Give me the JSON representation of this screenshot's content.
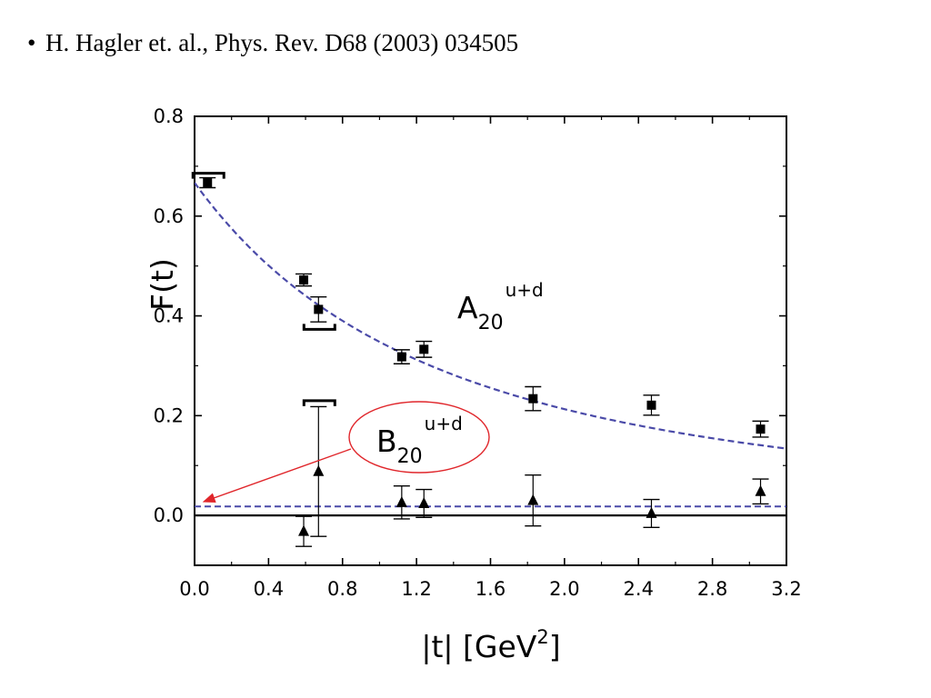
{
  "slide": {
    "bullet": "•",
    "citation": "H. Hagler et. al., Phys. Rev. D68 (2003) 034505"
  },
  "chart_data": {
    "type": "scatter",
    "title": "",
    "xlabel": "|t| [GeV",
    "xlabel_sup": "2",
    "xlabel_close": "]",
    "ylabel": "F(t)",
    "xlim": [
      0.0,
      3.2
    ],
    "ylim": [
      -0.1,
      0.8
    ],
    "x_ticks": [
      "0.0",
      "0.4",
      "0.8",
      "1.2",
      "1.6",
      "2.0",
      "2.4",
      "2.8",
      "3.2"
    ],
    "y_ticks": [
      "0.0",
      "0.2",
      "0.4",
      "0.6",
      "0.8"
    ],
    "grid": false,
    "series": [
      {
        "name": "A",
        "sub": "20",
        "sup": "u+d",
        "marker": "square",
        "points": [
          {
            "x": 0.07,
            "y": 0.667,
            "err": 0.01
          },
          {
            "x": 0.59,
            "y": 0.472,
            "err": 0.012
          },
          {
            "x": 0.67,
            "y": 0.413,
            "err": 0.025
          },
          {
            "x": 1.12,
            "y": 0.318,
            "err": 0.014
          },
          {
            "x": 1.24,
            "y": 0.333,
            "err": 0.016
          },
          {
            "x": 1.83,
            "y": 0.234,
            "err": 0.024
          },
          {
            "x": 2.47,
            "y": 0.221,
            "err": 0.02
          },
          {
            "x": 3.06,
            "y": 0.173,
            "err": 0.016
          }
        ],
        "fit": {
          "type": "dipole",
          "F0": 0.667,
          "M2": 2.6
        }
      },
      {
        "name": "B",
        "sub": "20",
        "sup": "u+d",
        "marker": "triangle",
        "points": [
          {
            "x": 0.59,
            "y": -0.032,
            "err": 0.03
          },
          {
            "x": 0.67,
            "y": 0.088,
            "err": 0.13
          },
          {
            "x": 1.12,
            "y": 0.026,
            "err": 0.033
          },
          {
            "x": 1.24,
            "y": 0.024,
            "err": 0.028
          },
          {
            "x": 1.83,
            "y": 0.03,
            "err": 0.051
          },
          {
            "x": 2.47,
            "y": 0.004,
            "err": 0.028
          },
          {
            "x": 3.06,
            "y": 0.048,
            "err": 0.025
          }
        ],
        "fit": {
          "type": "constant",
          "value": 0.018
        }
      }
    ],
    "caps": [
      {
        "x": 0.07,
        "y": 0.686
      },
      {
        "x": 0.67,
        "y": 0.373
      },
      {
        "x": 0.67,
        "y": 0.23
      }
    ],
    "colors": {
      "fit_line": "#4a4aa8",
      "zero_line": "#000000",
      "callout": "#e0262b",
      "markers": "#000000"
    }
  }
}
